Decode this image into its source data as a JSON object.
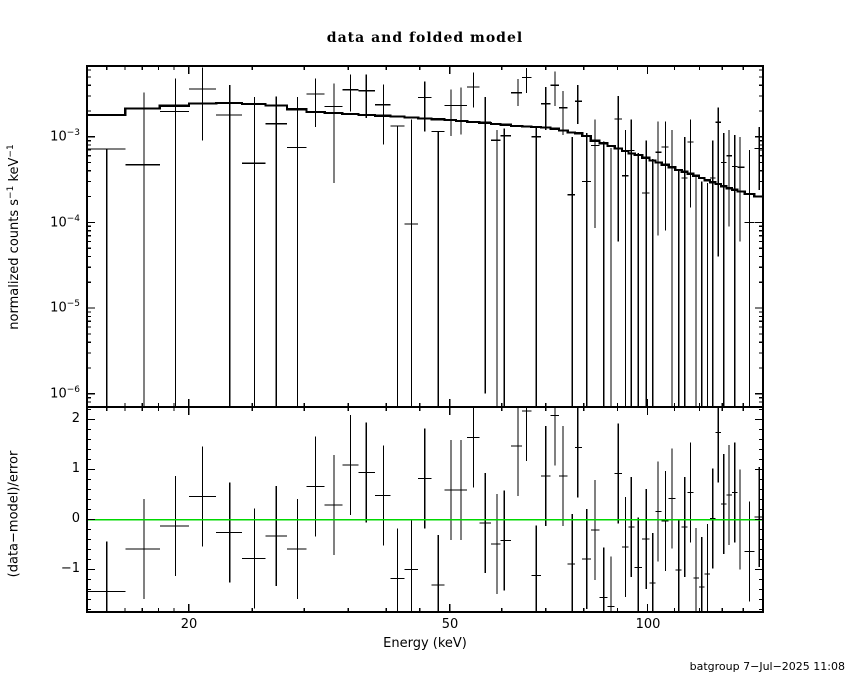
{
  "page": {
    "title": "data and folded model",
    "footer": "batgroup  7−Jul−2025 11:08"
  },
  "chart_data": [
    {
      "panel": "top",
      "type": "scatter",
      "title": "data and folded model",
      "xlabel": "Energy (keV)",
      "xscale": "log",
      "yscale": "log",
      "ylabel_parts": [
        "normalized counts s",
        "−1",
        " keV",
        "−1"
      ],
      "xlim": [
        14,
        150
      ],
      "ylim": [
        7e-07,
        0.0067
      ],
      "grid": false,
      "legend": false,
      "x_ticks": [
        {
          "v": 20,
          "label": "20"
        },
        {
          "v": 50,
          "label": "50"
        },
        {
          "v": 100,
          "label": "100"
        }
      ],
      "x_minor_ticks": [
        15,
        16,
        17,
        18,
        19,
        25,
        30,
        35,
        40,
        45,
        60,
        70,
        80,
        90,
        110,
        120,
        130,
        140
      ],
      "y_ticks": [
        {
          "v": 0.001,
          "base": "10",
          "exp": "−3"
        },
        {
          "v": 0.0001,
          "base": "10",
          "exp": "−4"
        },
        {
          "v": 1e-05,
          "base": "10",
          "exp": "−5"
        },
        {
          "v": 1e-06,
          "base": "10",
          "exp": "−6"
        }
      ],
      "e": [
        15.0,
        17.1,
        19.1,
        21.0,
        23.1,
        25.2,
        27.2,
        29.3,
        31.2,
        33.3,
        35.3,
        37.3,
        39.6,
        41.6,
        43.7,
        45.8,
        48.0,
        50.2,
        52.0,
        54.3,
        56.6,
        59.0,
        60.5,
        63.5,
        65.4,
        67.7,
        70.0,
        72.3,
        74.4,
        76.8,
        78.3,
        80.8,
        83.2,
        85.8,
        88.0,
        90.3,
        92.6,
        94.5,
        96.8,
        99.6,
        101.9,
        103.8,
        106.5,
        109.0,
        111.6,
        114.0,
        116.3,
        118.6,
        121.0,
        123.4,
        125.8,
        128.2,
        130.7,
        133.2,
        135.8,
        138.4,
        143.0,
        148.0
      ],
      "y": [
        0.00072,
        0.00047,
        0.00197,
        0.0036,
        0.0018,
        0.00049,
        0.00142,
        0.00075,
        0.00315,
        0.00226,
        0.00354,
        0.00344,
        0.00236,
        0.00134,
        9.6e-05,
        0.00287,
        0.00115,
        0.00232,
        0.00232,
        0.0038,
        0.00148,
        0.00091,
        0.00103,
        0.00326,
        0.0049,
        0.001,
        0.00243,
        0.004,
        0.00218,
        0.00021,
        0.0026,
        0.0003,
        0.00079,
        null,
        null,
        0.00161,
        0.00035,
        0.00069,
        null,
        0.00022,
        null,
        0.00066,
        0.00076,
        0.00045,
        null,
        0.00033,
        0.00087,
        null,
        null,
        null,
        0.00033,
        0.00148,
        0.0005,
        0.0006,
        0.00045,
        0.00044,
        0.0001,
        0.00073
      ],
      "y_lo": [
        null,
        null,
        null,
        0.0009,
        null,
        null,
        null,
        null,
        0.0013,
        0.00029,
        0.00197,
        0.00165,
        0.00081,
        null,
        null,
        0.00115,
        null,
        0.00102,
        0.00106,
        0.0022,
        1e-06,
        null,
        null,
        0.0023,
        0.00326,
        null,
        0.0012,
        0.0023,
        0.00105,
        null,
        0.0014,
        null,
        8.6e-05,
        null,
        null,
        6e-05,
        null,
        null,
        null,
        null,
        null,
        7e-05,
        8e-05,
        null,
        null,
        null,
        0.00015,
        null,
        null,
        null,
        null,
        4e-05,
        null,
        9e-05,
        null,
        6e-05,
        null,
        0.00024
      ],
      "y_hi": [
        0.00072,
        0.0033,
        0.0048,
        0.0064,
        0.004,
        0.0029,
        0.00295,
        0.0029,
        0.0048,
        0.0042,
        0.0053,
        0.00535,
        0.00405,
        0.00134,
        0.0016,
        0.0044,
        0.00115,
        0.00354,
        0.00376,
        0.0056,
        0.0029,
        0.0012,
        0.00125,
        0.00475,
        0.00635,
        0.00133,
        0.0038,
        0.0058,
        0.0034,
        0.001,
        0.004,
        0.0011,
        0.00158,
        0.00088,
        0.00074,
        0.003,
        0.0012,
        0.0016,
        0.00065,
        0.0009,
        0.00055,
        0.0015,
        0.0015,
        0.0012,
        0.00042,
        0.001,
        0.0016,
        0.00034,
        0.0003,
        0.00029,
        0.0009,
        0.0022,
        0.0011,
        0.0012,
        0.00105,
        0.001,
        0.0007,
        0.0013
      ],
      "model_y": [
        0.0018,
        0.00214,
        0.0023,
        0.00245,
        0.00248,
        0.00241,
        0.00232,
        0.0021,
        0.00195,
        0.00189,
        0.00184,
        0.0018,
        0.00176,
        0.00172,
        0.00168,
        0.00164,
        0.0016,
        0.00157,
        0.00153,
        0.00149,
        0.00145,
        0.00141,
        0.00138,
        0.00134,
        0.00132,
        0.0013,
        0.00128,
        0.00124,
        0.00118,
        0.00112,
        0.0011,
        0.00102,
        0.0009,
        0.00084,
        0.00078,
        0.00073,
        0.00068,
        0.00064,
        0.00061,
        0.00057,
        0.00053,
        0.0005,
        0.00047,
        0.00044,
        0.00041,
        0.00039,
        0.00037,
        0.00035,
        0.00033,
        0.00031,
        0.000295,
        0.00028,
        0.000265,
        0.00025,
        0.00024,
        0.00023,
        0.000215,
        0.0002
      ]
    },
    {
      "panel": "bottom",
      "type": "scatter",
      "ylabel": "(data−model)/error",
      "ylim": [
        -1.85,
        2.25
      ],
      "y_ticks": [
        {
          "v": 2,
          "label": "2"
        },
        {
          "v": 1,
          "label": "1"
        },
        {
          "v": 0,
          "label": "0"
        },
        {
          "v": -1,
          "label": "−1"
        }
      ],
      "y_minor_step": 0.2,
      "residuals": [
        -1.44,
        -0.59,
        -0.13,
        0.46,
        -0.26,
        -0.78,
        -0.33,
        -0.59,
        0.66,
        0.29,
        1.09,
        0.94,
        0.48,
        -1.18,
        -1.0,
        0.82,
        -1.31,
        0.59,
        0.59,
        1.64,
        -0.07,
        -0.49,
        -0.42,
        1.47,
        2.17,
        -1.12,
        0.87,
        2.08,
        0.87,
        -0.89,
        1.44,
        -0.79,
        -0.21,
        -1.56,
        -1.74,
        0.92,
        -0.55,
        -0.15,
        -0.96,
        -0.39,
        -1.27,
        0.16,
        -0.03,
        0.42,
        -1.01,
        -0.15,
        0.54,
        -1.17,
        -1.35,
        -1.09,
        0.02,
        1.74,
        0.31,
        0.49,
        0.54,
        0.0,
        -0.64,
        0.05
      ],
      "rerr": 1.0,
      "zero_line_color": "#00D800"
    }
  ]
}
